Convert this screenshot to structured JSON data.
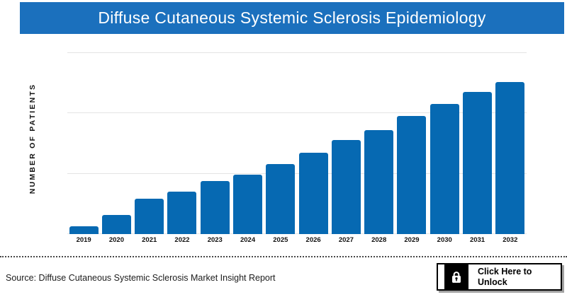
{
  "header": {
    "title": "Diffuse Cutaneous Systemic Sclerosis Epidemiology",
    "bg_color": "#1B70BD",
    "text_color": "#FFFFFF"
  },
  "chart_data": {
    "type": "bar",
    "title": "Diffuse Cutaneous Systemic Sclerosis Epidemiology",
    "xlabel": "",
    "ylabel": "NUMBER OF PATIENTS",
    "categories": [
      "2019",
      "2020",
      "2021",
      "2022",
      "2023",
      "2024",
      "2025",
      "2026",
      "2027",
      "2028",
      "2029",
      "2030",
      "2031",
      "2032"
    ],
    "values": [
      4.3,
      10.5,
      19.5,
      23.4,
      29.3,
      32.8,
      38.7,
      44.9,
      52.0,
      57.4,
      65.2,
      71.9,
      78.5,
      84.0
    ],
    "values_note": "No numeric y-axis tick labels shown; values are relative bar heights as percent of plot height (top gridline = 100)",
    "ylim": [
      0,
      100
    ],
    "gridlines_pct": [
      0,
      33.3,
      66.7,
      100
    ],
    "grid": "horizontal",
    "legend": "none",
    "bar_color": "#0669B2",
    "gridline_color": "#E4E4E4",
    "tick_label_color": "#111111"
  },
  "footer": {
    "source_text": "Source: Diffuse Cutaneous Systemic Sclerosis Market Insight Report",
    "unlock_button": {
      "line1": "Click Here to",
      "line2": "Unlock",
      "icon": "lock-icon"
    }
  }
}
